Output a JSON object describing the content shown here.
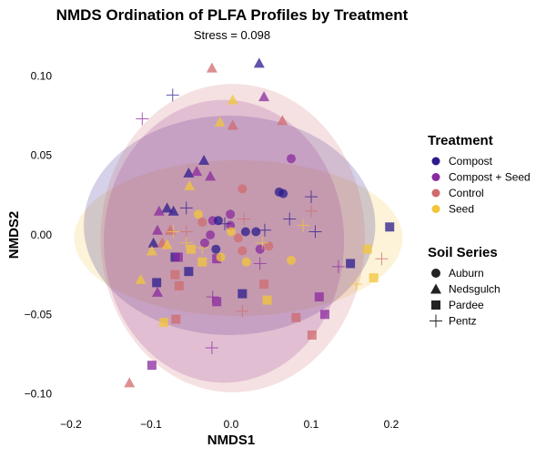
{
  "chart_data": {
    "type": "scatter",
    "title": "NMDS Ordination of PLFA Profiles by Treatment",
    "subtitle": "Stress = 0.098",
    "xlabel": "NMDS1",
    "ylabel": "NMDS2",
    "xlim": [
      -0.22,
      0.225
    ],
    "ylim": [
      -0.112,
      0.113
    ],
    "x_ticks": [
      -0.2,
      -0.1,
      0.0,
      0.1,
      0.2
    ],
    "x_tick_labels": [
      "−0.2",
      "−0.1",
      "0.0",
      "0.1",
      "0.2"
    ],
    "y_ticks": [
      0.1,
      0.05,
      0.0,
      -0.05,
      -0.1
    ],
    "y_tick_labels": [
      "0.10",
      "0.05",
      "0.00",
      "−0.05",
      "−0.10"
    ],
    "grid": false,
    "legend_placement": "right",
    "treatment_legend": {
      "title": "Treatment",
      "items": [
        {
          "name": "Compost",
          "color": "#2a1b8e"
        },
        {
          "name": "Compost + Seed",
          "color": "#8a2a9f"
        },
        {
          "name": "Control",
          "color": "#cf6b6d"
        },
        {
          "name": "Seed",
          "color": "#f2c53a"
        }
      ]
    },
    "soil_legend": {
      "title": "Soil Series",
      "items": [
        {
          "name": "Auburn",
          "shape": "circle"
        },
        {
          "name": "Nedsgulch",
          "shape": "triangle"
        },
        {
          "name": "Pardee",
          "shape": "square"
        },
        {
          "name": "Pentz",
          "shape": "cross"
        }
      ]
    },
    "ellipses": [
      {
        "group": "Seed",
        "center": [
          0.009,
          -0.002
        ],
        "radius_x": 0.205,
        "radius_y": 0.049
      },
      {
        "group": "Compost",
        "center": [
          -0.002,
          0.006
        ],
        "radius_x": 0.182,
        "radius_y": 0.069
      },
      {
        "group": "Compost + Seed",
        "center": [
          -0.009,
          -0.004
        ],
        "radius_x": 0.15,
        "radius_y": 0.089
      },
      {
        "group": "Control",
        "center": [
          0.002,
          -0.002
        ],
        "radius_x": 0.165,
        "radius_y": 0.097
      }
    ],
    "points": [
      [
        -0.024,
        0.105,
        "Control",
        "Nedsgulch"
      ],
      [
        0.035,
        0.108,
        "Compost",
        "Nedsgulch"
      ],
      [
        -0.073,
        0.088,
        "Compost",
        "Pentz"
      ],
      [
        -0.111,
        0.073,
        "Compost + Seed",
        "Pentz"
      ],
      [
        0.002,
        0.085,
        "Seed",
        "Nedsgulch"
      ],
      [
        0.041,
        0.087,
        "Compost + Seed",
        "Nedsgulch"
      ],
      [
        -0.014,
        0.071,
        "Seed",
        "Nedsgulch"
      ],
      [
        0.002,
        0.069,
        "Control",
        "Nedsgulch"
      ],
      [
        0.064,
        0.072,
        "Control",
        "Nedsgulch"
      ],
      [
        0.075,
        0.048,
        "Compost + Seed",
        "Auburn"
      ],
      [
        -0.034,
        0.047,
        "Compost",
        "Nedsgulch"
      ],
      [
        -0.053,
        0.039,
        "Compost",
        "Nedsgulch"
      ],
      [
        -0.043,
        0.04,
        "Compost + Seed",
        "Nedsgulch"
      ],
      [
        -0.026,
        0.037,
        "Compost + Seed",
        "Nedsgulch"
      ],
      [
        -0.052,
        0.031,
        "Seed",
        "Nedsgulch"
      ],
      [
        0.014,
        0.029,
        "Control",
        "Auburn"
      ],
      [
        0.06,
        0.027,
        "Compost",
        "Auburn"
      ],
      [
        0.065,
        0.026,
        "Compost",
        "Auburn"
      ],
      [
        -0.09,
        0.015,
        "Compost + Seed",
        "Nedsgulch"
      ],
      [
        -0.08,
        0.017,
        "Compost",
        "Nedsgulch"
      ],
      [
        -0.072,
        0.015,
        "Compost",
        "Nedsgulch"
      ],
      [
        -0.056,
        0.017,
        "Compost",
        "Pentz"
      ],
      [
        -0.041,
        0.013,
        "Seed",
        "Auburn"
      ],
      [
        -0.036,
        0.008,
        "Control",
        "Auburn"
      ],
      [
        -0.023,
        0.009,
        "Compost + Seed",
        "Auburn"
      ],
      [
        -0.016,
        0.009,
        "Compost",
        "Auburn"
      ],
      [
        -0.001,
        0.013,
        "Compost + Seed",
        "Auburn"
      ],
      [
        -0.001,
        0.006,
        "Compost + Seed",
        "Auburn"
      ],
      [
        0.016,
        0.01,
        "Control",
        "Pentz"
      ],
      [
        -0.008,
        0.007,
        "Compost",
        "Pentz"
      ],
      [
        0.018,
        0.002,
        "Compost",
        "Auburn"
      ],
      [
        0.042,
        0.003,
        "Compost",
        "Pentz"
      ],
      [
        0.073,
        0.01,
        "Compost",
        "Pentz"
      ],
      [
        0.1,
        0.015,
        "Control",
        "Pentz"
      ],
      [
        0.1,
        0.024,
        "Compost",
        "Pentz"
      ],
      [
        0.09,
        0.006,
        "Seed",
        "Pentz"
      ],
      [
        0.105,
        0.002,
        "Compost",
        "Pentz"
      ],
      [
        -0.092,
        0.003,
        "Compost + Seed",
        "Nedsgulch"
      ],
      [
        -0.076,
        0.003,
        "Control",
        "Nedsgulch"
      ],
      [
        -0.097,
        -0.005,
        "Compost",
        "Nedsgulch"
      ],
      [
        -0.086,
        -0.005,
        "Control",
        "Nedsgulch"
      ],
      [
        -0.08,
        -0.006,
        "Seed",
        "Nedsgulch"
      ],
      [
        -0.099,
        -0.01,
        "Seed",
        "Nedsgulch"
      ],
      [
        -0.072,
        0.002,
        "Seed",
        "Pentz"
      ],
      [
        -0.056,
        0.002,
        "Control",
        "Pentz"
      ],
      [
        -0.056,
        -0.005,
        "Seed",
        "Pentz"
      ],
      [
        -0.036,
        -0.008,
        "Seed",
        "Pentz"
      ],
      [
        -0.05,
        -0.009,
        "Seed",
        "Pardee"
      ],
      [
        -0.07,
        -0.014,
        "Compost",
        "Pardee"
      ],
      [
        -0.066,
        -0.014,
        "Compost + Seed",
        "Pardee"
      ],
      [
        -0.036,
        -0.017,
        "Seed",
        "Pardee"
      ],
      [
        -0.018,
        -0.015,
        "Compost + Seed",
        "Pardee"
      ],
      [
        -0.07,
        -0.025,
        "Control",
        "Pardee"
      ],
      [
        -0.053,
        -0.023,
        "Compost",
        "Pardee"
      ],
      [
        -0.093,
        -0.03,
        "Compost",
        "Pardee"
      ],
      [
        -0.065,
        -0.032,
        "Control",
        "Pardee"
      ],
      [
        0.014,
        -0.037,
        "Compost",
        "Pardee"
      ],
      [
        -0.018,
        -0.042,
        "Compost + Seed",
        "Pardee"
      ],
      [
        -0.084,
        -0.055,
        "Seed",
        "Pardee"
      ],
      [
        -0.069,
        -0.053,
        "Control",
        "Pardee"
      ],
      [
        -0.099,
        -0.082,
        "Compost + Seed",
        "Pardee"
      ],
      [
        -0.113,
        -0.028,
        "Seed",
        "Nedsgulch"
      ],
      [
        -0.092,
        -0.036,
        "Compost + Seed",
        "Nedsgulch"
      ],
      [
        -0.127,
        -0.093,
        "Control",
        "Nedsgulch"
      ],
      [
        -0.033,
        -0.005,
        "Compost + Seed",
        "Auburn"
      ],
      [
        -0.019,
        -0.009,
        "Compost",
        "Auburn"
      ],
      [
        -0.013,
        -0.014,
        "Seed",
        "Auburn"
      ],
      [
        0.014,
        -0.01,
        "Control",
        "Auburn"
      ],
      [
        0.036,
        -0.009,
        "Compost + Seed",
        "Auburn"
      ],
      [
        0.019,
        -0.017,
        "Seed",
        "Auburn"
      ],
      [
        0.047,
        -0.007,
        "Control",
        "Auburn"
      ],
      [
        0.031,
        0.002,
        "Compost",
        "Auburn"
      ],
      [
        -0.023,
        -0.039,
        "Compost + Seed",
        "Pentz"
      ],
      [
        0.014,
        -0.048,
        "Control",
        "Pentz"
      ],
      [
        -0.024,
        -0.071,
        "Compost + Seed",
        "Pentz"
      ],
      [
        0.036,
        -0.018,
        "Compost + Seed",
        "Pentz"
      ],
      [
        0.041,
        -0.031,
        "Control",
        "Pardee"
      ],
      [
        0.045,
        -0.041,
        "Seed",
        "Pardee"
      ],
      [
        0.11,
        -0.039,
        "Compost + Seed",
        "Pardee"
      ],
      [
        0.081,
        -0.052,
        "Control",
        "Pardee"
      ],
      [
        0.117,
        -0.05,
        "Compost + Seed",
        "Pardee"
      ],
      [
        0.101,
        -0.063,
        "Control",
        "Pardee"
      ],
      [
        0.149,
        -0.018,
        "Compost",
        "Pardee"
      ],
      [
        0.17,
        -0.009,
        "Seed",
        "Pardee"
      ],
      [
        0.178,
        -0.027,
        "Seed",
        "Pardee"
      ],
      [
        0.198,
        0.005,
        "Compost",
        "Pardee"
      ],
      [
        0.075,
        -0.016,
        "Seed",
        "Auburn"
      ],
      [
        0.134,
        -0.02,
        "Compost + Seed",
        "Pentz"
      ],
      [
        0.188,
        -0.015,
        "Control",
        "Pentz"
      ],
      [
        0.156,
        -0.031,
        "Seed",
        "Pentz"
      ],
      [
        0.039,
        -0.005,
        "Seed",
        "Pentz"
      ],
      [
        0.0,
        0.002,
        "Seed",
        "Auburn"
      ],
      [
        0.009,
        -0.002,
        "Control",
        "Auburn"
      ],
      [
        -0.026,
        0.0,
        "Compost + Seed",
        "Auburn"
      ]
    ]
  }
}
